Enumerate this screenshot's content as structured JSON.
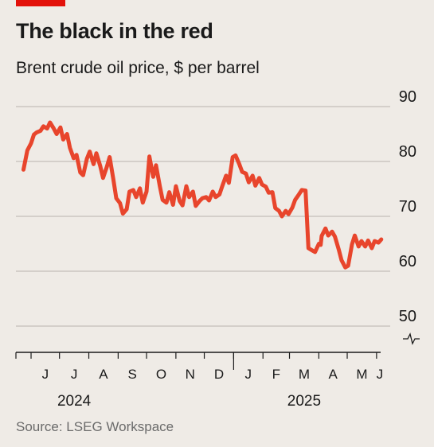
{
  "header": {
    "title": "The black in the red",
    "subtitle": "Brent crude oil price, $ per barrel"
  },
  "footer": {
    "source": "Source: LSEG Workspace"
  },
  "colors": {
    "accent": "#e3120b",
    "line": "#e8452c",
    "background": "#efebe6",
    "grid": "#b8b3ad"
  },
  "chart_data": {
    "type": "line",
    "title": "The black in the red",
    "subtitle": "Brent crude oil price, $ per barrel",
    "xlabel": "",
    "ylabel": "",
    "ylim": [
      50,
      90
    ],
    "y_ticks": [
      "90",
      "80",
      "70",
      "60",
      "50"
    ],
    "y_axis_side": "right",
    "y_axis_break": true,
    "grid": true,
    "x_ticks": [
      "J",
      "J",
      "A",
      "S",
      "O",
      "N",
      "D",
      "J",
      "F",
      "M",
      "A",
      "M",
      "J"
    ],
    "x_years": [
      {
        "label": "2024",
        "under": "Jul"
      },
      {
        "label": "2025",
        "under": "Mar"
      }
    ],
    "series": [
      {
        "x": [
          "2024-05-24",
          "2024-05-28",
          "2024-06-01",
          "2024-06-04",
          "2024-06-07",
          "2024-06-11",
          "2024-06-14",
          "2024-06-18",
          "2024-06-21",
          "2024-06-25",
          "2024-06-28",
          "2024-07-02",
          "2024-07-05",
          "2024-07-09",
          "2024-07-12",
          "2024-07-16",
          "2024-07-19",
          "2024-07-23",
          "2024-07-26",
          "2024-07-30",
          "2024-08-02",
          "2024-08-06",
          "2024-08-09",
          "2024-08-13",
          "2024-08-16",
          "2024-08-20",
          "2024-08-23",
          "2024-08-27",
          "2024-08-30",
          "2024-09-03",
          "2024-09-06",
          "2024-09-10",
          "2024-09-13",
          "2024-09-17",
          "2024-09-20",
          "2024-09-24",
          "2024-09-27",
          "2024-10-01",
          "2024-10-04",
          "2024-10-08",
          "2024-10-11",
          "2024-10-15",
          "2024-10-18",
          "2024-10-22",
          "2024-10-25",
          "2024-10-29",
          "2024-11-01",
          "2024-11-05",
          "2024-11-08",
          "2024-11-12",
          "2024-11-15",
          "2024-11-19",
          "2024-11-22",
          "2024-11-26",
          "2024-11-29",
          "2024-12-03",
          "2024-12-06",
          "2024-12-10",
          "2024-12-13",
          "2024-12-17",
          "2024-12-20",
          "2024-12-24",
          "2024-12-27",
          "2024-12-31",
          "2025-01-03",
          "2025-01-07",
          "2025-01-10",
          "2025-01-14",
          "2025-01-17",
          "2025-01-21",
          "2025-01-24",
          "2025-01-28",
          "2025-01-31",
          "2025-02-04",
          "2025-02-07",
          "2025-02-11",
          "2025-02-14",
          "2025-02-18",
          "2025-02-21",
          "2025-02-25",
          "2025-02-28",
          "2025-03-04",
          "2025-03-07",
          "2025-03-11",
          "2025-03-14",
          "2025-03-18",
          "2025-03-21",
          "2025-03-25",
          "2025-03-28",
          "2025-04-01",
          "2025-04-03",
          "2025-04-04",
          "2025-04-08",
          "2025-04-11",
          "2025-04-15",
          "2025-04-18",
          "2025-04-22",
          "2025-04-25",
          "2025-04-29",
          "2025-05-02",
          "2025-05-06",
          "2025-05-09",
          "2025-05-13",
          "2025-05-16",
          "2025-05-20",
          "2025-05-23",
          "2025-05-27",
          "2025-05-30",
          "2025-06-03",
          "2025-06-06"
        ],
        "values": [
          78.5,
          82.0,
          83.3,
          84.9,
          85.3,
          85.6,
          86.4,
          86.0,
          87.1,
          86.0,
          85.0,
          86.2,
          84.0,
          85.0,
          82.5,
          80.6,
          81.2,
          78.0,
          77.5,
          80.5,
          81.8,
          79.5,
          81.5,
          79.2,
          77.0,
          79.0,
          80.8,
          76.7,
          73.3,
          72.4,
          70.5,
          71.3,
          74.5,
          74.8,
          73.5,
          75.1,
          72.5,
          74.5,
          80.9,
          77.2,
          79.3,
          75.5,
          73.0,
          72.5,
          74.4,
          72.1,
          75.5,
          72.8,
          72.0,
          75.5,
          73.5,
          74.5,
          71.9,
          72.8,
          73.3,
          73.5,
          72.9,
          74.5,
          73.5,
          74.0,
          75.5,
          77.4,
          76.1,
          80.8,
          81.1,
          79.5,
          78.1,
          77.8,
          76.2,
          77.4,
          75.6,
          77.0,
          75.8,
          75.4,
          74.3,
          74.4,
          71.5,
          71.0,
          70.0,
          71.0,
          70.4,
          71.6,
          73.0,
          74.0,
          74.8,
          74.7,
          64.2,
          63.8,
          63.5,
          65.0,
          64.8,
          66.4,
          67.8,
          66.5,
          67.2,
          66.3,
          64.0,
          62.0,
          60.7,
          61.0,
          64.9,
          66.5,
          64.5,
          65.5,
          64.5,
          65.6,
          64.2,
          65.5,
          65.2,
          65.8
        ]
      }
    ]
  }
}
